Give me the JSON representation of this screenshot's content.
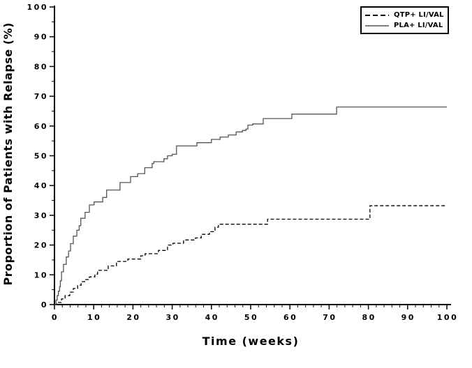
{
  "figure": {
    "background": "#ffffff"
  },
  "chart_data": {
    "type": "line",
    "subtype": "kaplan-meier-step",
    "title": "",
    "xlabel": "Time (weeks)",
    "ylabel": "Proportion of Patients with Relapse (%)",
    "x_axis": {
      "min": 0,
      "max": 100,
      "major_ticks": [
        0,
        10,
        20,
        30,
        40,
        50,
        60,
        70,
        80,
        90,
        100
      ],
      "minor_step": 2
    },
    "y_axis": {
      "min": 0,
      "max": 100,
      "major_ticks": [
        0,
        10,
        20,
        30,
        40,
        50,
        60,
        70,
        80,
        90,
        100
      ],
      "minor_step": 5
    },
    "legend": {
      "position": "top-right"
    },
    "grid": false,
    "series": [
      {
        "name": "QTP+ LI/VAL",
        "line_style": "dashed",
        "color": "#000000",
        "step_points": [
          [
            0,
            0
          ],
          [
            0.5,
            0.7
          ],
          [
            1.8,
            1.9
          ],
          [
            2.7,
            3
          ],
          [
            3.9,
            4.2
          ],
          [
            4.8,
            5.4
          ],
          [
            5.9,
            6.5
          ],
          [
            6.8,
            7.7
          ],
          [
            7.7,
            8.4
          ],
          [
            8.9,
            9.3
          ],
          [
            10.3,
            10.2
          ],
          [
            11,
            11.5
          ],
          [
            13.7,
            13
          ],
          [
            15.8,
            14.5
          ],
          [
            18.7,
            15.3
          ],
          [
            22,
            16.4
          ],
          [
            23.1,
            17.1
          ],
          [
            26.5,
            18.2
          ],
          [
            28.8,
            20
          ],
          [
            30.2,
            20.6
          ],
          [
            32.9,
            21.7
          ],
          [
            35.9,
            22.4
          ],
          [
            37.4,
            23.6
          ],
          [
            39.5,
            24.5
          ],
          [
            40.9,
            26
          ],
          [
            41.8,
            27
          ],
          [
            54.3,
            28.7
          ],
          [
            80.4,
            33.2
          ],
          [
            100,
            33.2
          ]
        ]
      },
      {
        "name": "PLA+ LI/VAL",
        "line_style": "solid",
        "color": "#555555",
        "step_points": [
          [
            0,
            0
          ],
          [
            0.4,
            1.5
          ],
          [
            0.7,
            3
          ],
          [
            1,
            4.5
          ],
          [
            1.3,
            6
          ],
          [
            1.5,
            8
          ],
          [
            1.8,
            11
          ],
          [
            2.3,
            13.5
          ],
          [
            3,
            16
          ],
          [
            3.6,
            18
          ],
          [
            4.1,
            20.5
          ],
          [
            4.8,
            23
          ],
          [
            5.7,
            25
          ],
          [
            6.3,
            26.5
          ],
          [
            6.7,
            29
          ],
          [
            7.8,
            31
          ],
          [
            8.9,
            33.5
          ],
          [
            10.1,
            34.5
          ],
          [
            12.3,
            36
          ],
          [
            13.3,
            38.5
          ],
          [
            16.7,
            41
          ],
          [
            19.4,
            43
          ],
          [
            21.2,
            44
          ],
          [
            23,
            46
          ],
          [
            24.9,
            47.4
          ],
          [
            25.3,
            48
          ],
          [
            27.9,
            49
          ],
          [
            28.8,
            50
          ],
          [
            30,
            50.5
          ],
          [
            31.1,
            53.3
          ],
          [
            36.3,
            54.4
          ],
          [
            40,
            55.5
          ],
          [
            42.2,
            56.3
          ],
          [
            44.3,
            57
          ],
          [
            46.3,
            58
          ],
          [
            47.9,
            58.5
          ],
          [
            48.8,
            59
          ],
          [
            49.3,
            60.3
          ],
          [
            50.5,
            60.7
          ],
          [
            53.2,
            62.5
          ],
          [
            60.5,
            64
          ],
          [
            71.9,
            66.4
          ],
          [
            100,
            66.4
          ]
        ]
      }
    ]
  }
}
